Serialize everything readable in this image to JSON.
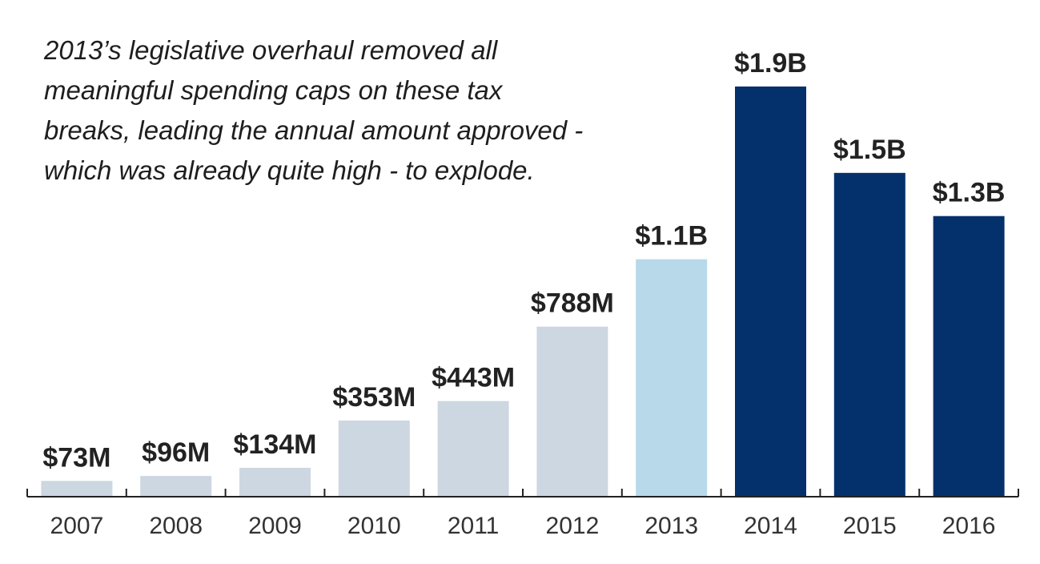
{
  "annotation": {
    "lines": [
      "2013’s legislative overhaul removed all",
      "meaningful spending caps on these tax",
      "breaks, leading the annual amount approved -",
      "which was already quite high - to explode."
    ]
  },
  "colors": {
    "pre_overhaul": "#cdd7e1",
    "overhaul_year": "#b7d9ea",
    "post_overhaul": "#04306b",
    "axis": "#222222",
    "text": "#222222"
  },
  "chart_data": {
    "type": "bar",
    "title": "",
    "xlabel": "",
    "ylabel": "",
    "categories": [
      "2007",
      "2008",
      "2009",
      "2010",
      "2011",
      "2012",
      "2013",
      "2014",
      "2015",
      "2016"
    ],
    "values": [
      73000000,
      96000000,
      134000000,
      353000000,
      443000000,
      788000000,
      1100000000,
      1900000000,
      1500000000,
      1300000000
    ],
    "value_labels": [
      "$73M",
      "$96M",
      "$134M",
      "$353M",
      "$443M",
      "$788M",
      "$1.1B",
      "$1.9B",
      "$1.5B",
      "$1.3B"
    ],
    "bar_colors": [
      "#cdd7e1",
      "#cdd7e1",
      "#cdd7e1",
      "#cdd7e1",
      "#cdd7e1",
      "#cdd7e1",
      "#b7d9ea",
      "#04306b",
      "#04306b",
      "#04306b"
    ],
    "ylim": [
      0,
      1900000000
    ],
    "grid": false,
    "legend": "none"
  }
}
